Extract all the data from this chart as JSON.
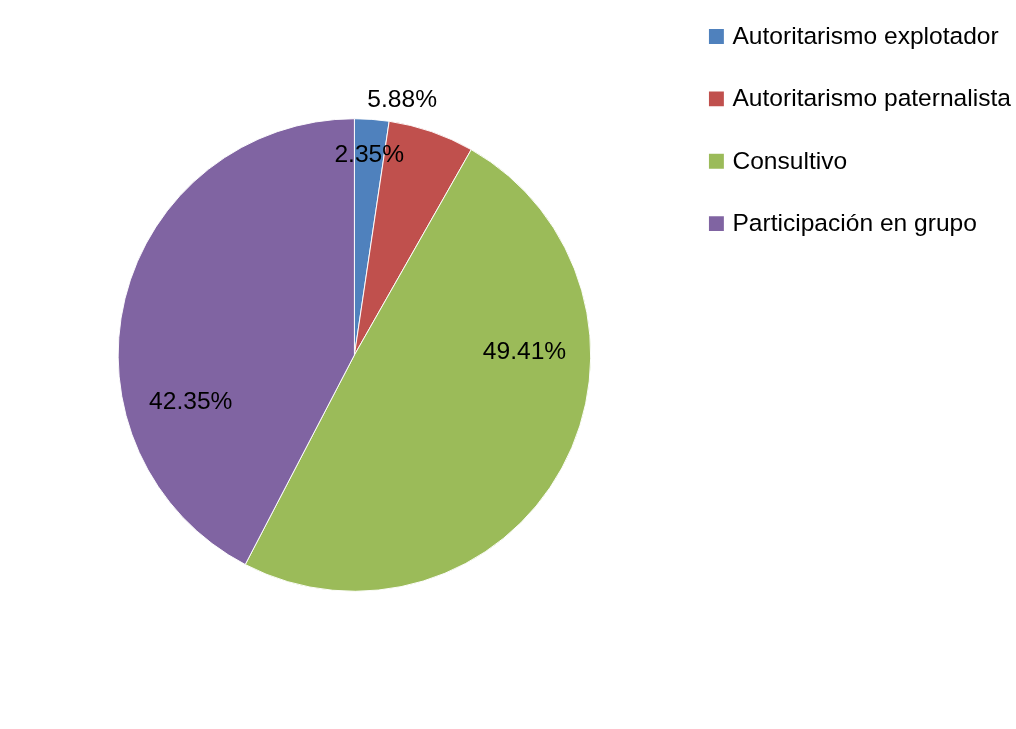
{
  "chart_data": {
    "type": "pie",
    "categories": [
      "Autoritarismo explotador",
      "Autoritarismo paternalista",
      "Consultivo",
      "Participación en grupo"
    ],
    "values": [
      2.35,
      5.88,
      49.41,
      42.35
    ],
    "colors": [
      "#4f81bd",
      "#c0504d",
      "#9bbb59",
      "#8064a2"
    ],
    "value_labels": [
      "2.35%",
      "5.88%",
      "49.41%",
      "42.35%"
    ],
    "legend": "right"
  }
}
